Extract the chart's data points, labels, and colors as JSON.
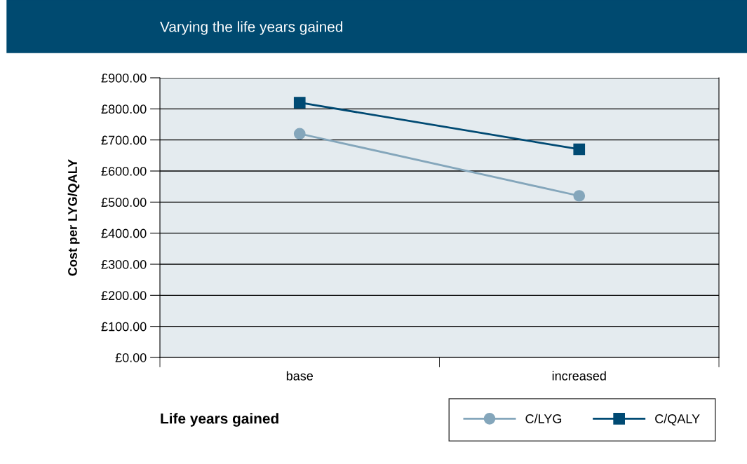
{
  "chart_data": {
    "type": "line",
    "title": "Varying the life years gained",
    "xlabel": "Life years gained",
    "ylabel": "Cost per LYG/QALY",
    "categories": [
      "base",
      "increased"
    ],
    "series": [
      {
        "name": "C/LYG",
        "color": "#84a6bb",
        "marker": "circle",
        "values": [
          720,
          520
        ]
      },
      {
        "name": "C/QALY",
        "color": "#004a73",
        "marker": "square",
        "values": [
          820,
          670
        ]
      }
    ],
    "ylim": [
      0,
      900
    ],
    "yticks": [
      {
        "value": 0,
        "label": "£0.00"
      },
      {
        "value": 100,
        "label": "£100.00"
      },
      {
        "value": 200,
        "label": "£200.00"
      },
      {
        "value": 300,
        "label": "£300.00"
      },
      {
        "value": 400,
        "label": "£400.00"
      },
      {
        "value": 500,
        "label": "£500.00"
      },
      {
        "value": 600,
        "label": "£600.00"
      },
      {
        "value": 700,
        "label": "£700.00"
      },
      {
        "value": 800,
        "label": "£800.00"
      },
      {
        "value": 900,
        "label": "£900.00"
      }
    ],
    "grid": "y",
    "legend": "bottom right"
  }
}
